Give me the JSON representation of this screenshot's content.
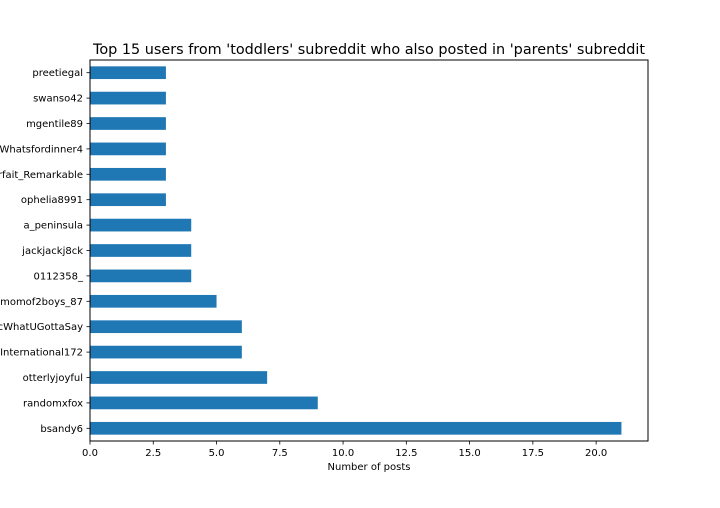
{
  "chart_data": {
    "type": "bar",
    "orientation": "horizontal",
    "title": "Top 15 users from 'toddlers' subreddit who also posted in 'parents' subreddit",
    "xlabel": "Number of posts",
    "ylabel": "",
    "categories": [
      "bsandy6",
      "randomxfox",
      "otterlyjoyful",
      "International172",
      "cWhatUGottaSay",
      "momof2boys_87",
      "0112358_",
      "jackjackj8ck",
      "a_peninsula",
      "ophelia8991",
      "rfait_Remarkable",
      "Whatsfordinner4",
      "mgentile89",
      "swanso42",
      "preetiegal"
    ],
    "values": [
      21,
      9,
      7,
      6,
      6,
      5,
      4,
      4,
      4,
      3,
      3,
      3,
      3,
      3,
      3
    ],
    "xlim": [
      0,
      22.05
    ],
    "xticks": [
      "0.0",
      "2.5",
      "5.0",
      "7.5",
      "10.0",
      "12.5",
      "15.0",
      "17.5",
      "20.0"
    ],
    "bar_color": "#1f77b4",
    "grid": false,
    "legend": "none"
  }
}
